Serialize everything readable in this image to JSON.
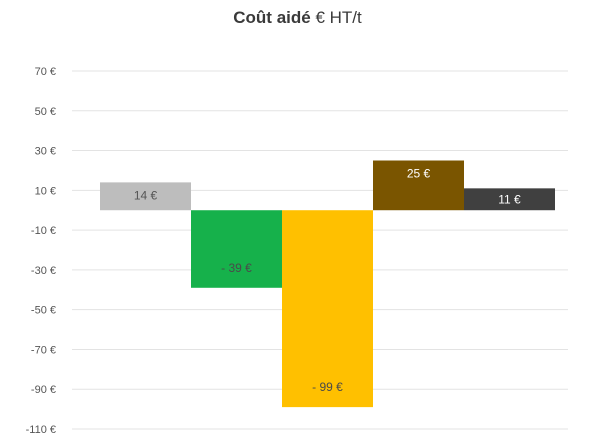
{
  "chart_data": {
    "type": "bar",
    "title_bold": "Coût aidé",
    "title_rest": " € HT/t",
    "categories": [
      "",
      "",
      "",
      "",
      ""
    ],
    "values": [
      14,
      -39,
      -99,
      25,
      11
    ],
    "data_labels": [
      "14 €",
      "- 39 €",
      "- 99 €",
      "25 €",
      "11 €"
    ],
    "colors": [
      "#bdbdbd",
      "#16b14b",
      "#ffc000",
      "#7a5500",
      "#404040"
    ],
    "label_colors": [
      "#555555",
      "#4a4a4a",
      "#4a4a4a",
      "#ffffff",
      "#ffffff"
    ],
    "ytick_values": [
      70,
      50,
      30,
      10,
      -10,
      -30,
      -50,
      -70,
      -90,
      -110
    ],
    "ytick_labels": [
      "70 €",
      "50 €",
      "30 €",
      "10 €",
      "-10 €",
      "-30 €",
      "-50 €",
      "-70 €",
      "-90 €",
      "-110 €"
    ],
    "ylim": [
      -110,
      70
    ],
    "grid": true,
    "legend": "none"
  }
}
